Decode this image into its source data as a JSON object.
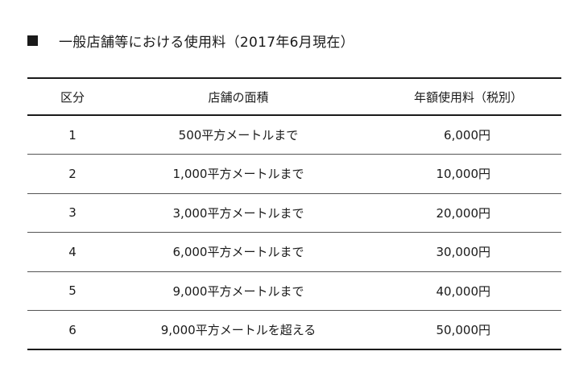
{
  "document": {
    "marker": "■",
    "title": "一般店舗等における使用料（2017年6月現在）"
  },
  "table": {
    "headers": {
      "division": "区分",
      "floor_area": "店舗の面積",
      "annual_fee": "年額使用料（税別）"
    },
    "rows": [
      {
        "division": "1",
        "floor_area": "500平方メートルまで",
        "annual_fee": "6,000円"
      },
      {
        "division": "2",
        "floor_area": "1,000平方メートルまで",
        "annual_fee": "10,000円"
      },
      {
        "division": "3",
        "floor_area": "3,000平方メートルまで",
        "annual_fee": "20,000円"
      },
      {
        "division": "4",
        "floor_area": "6,000平方メートルまで",
        "annual_fee": "30,000円"
      },
      {
        "division": "5",
        "floor_area": "9,000平方メートルまで",
        "annual_fee": "40,000円"
      },
      {
        "division": "6",
        "floor_area": "9,000平方メートルを超える",
        "annual_fee": "50,000円"
      }
    ]
  },
  "colors": {
    "text": "#1a1a1a",
    "rule": "#1a1a1a",
    "background": "#ffffff"
  }
}
